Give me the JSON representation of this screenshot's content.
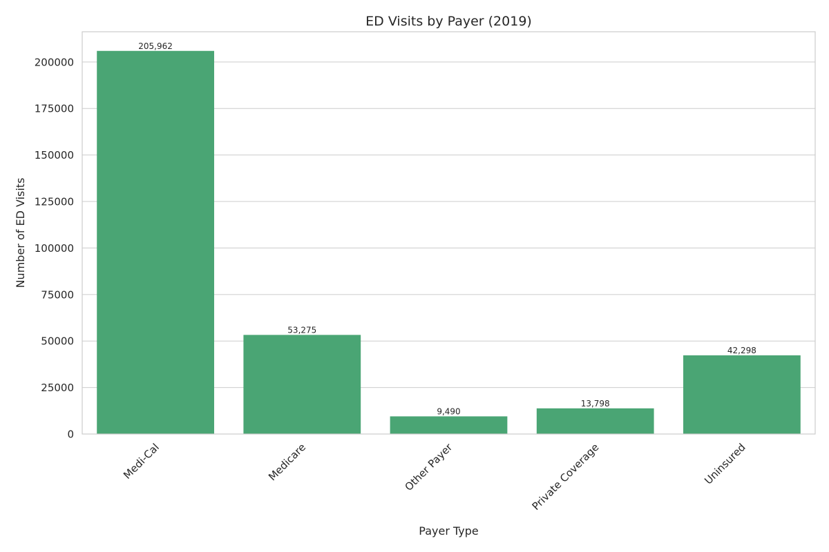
{
  "chart_data": {
    "type": "bar",
    "title": "ED Visits by Payer (2019)",
    "xlabel": "Payer Type",
    "ylabel": "Number of ED Visits",
    "categories": [
      "Medi-Cal",
      "Medicare",
      "Other Payer",
      "Private Coverage",
      "Uninsured"
    ],
    "values": [
      205962,
      53275,
      9490,
      13798,
      42298
    ],
    "value_labels": [
      "205,962",
      "53,275",
      "9,490",
      "13,798",
      "42,298"
    ],
    "ylim": [
      0,
      216260
    ],
    "yticks": [
      0,
      25000,
      50000,
      75000,
      100000,
      125000,
      150000,
      175000,
      200000
    ],
    "ytick_labels": [
      "0",
      "25000",
      "50000",
      "75000",
      "100000",
      "125000",
      "150000",
      "175000",
      "200000"
    ],
    "grid": "y",
    "legend": "none",
    "bar_color": "#4aa574",
    "grid_color": "#cccccc",
    "text_color": "#262626"
  }
}
